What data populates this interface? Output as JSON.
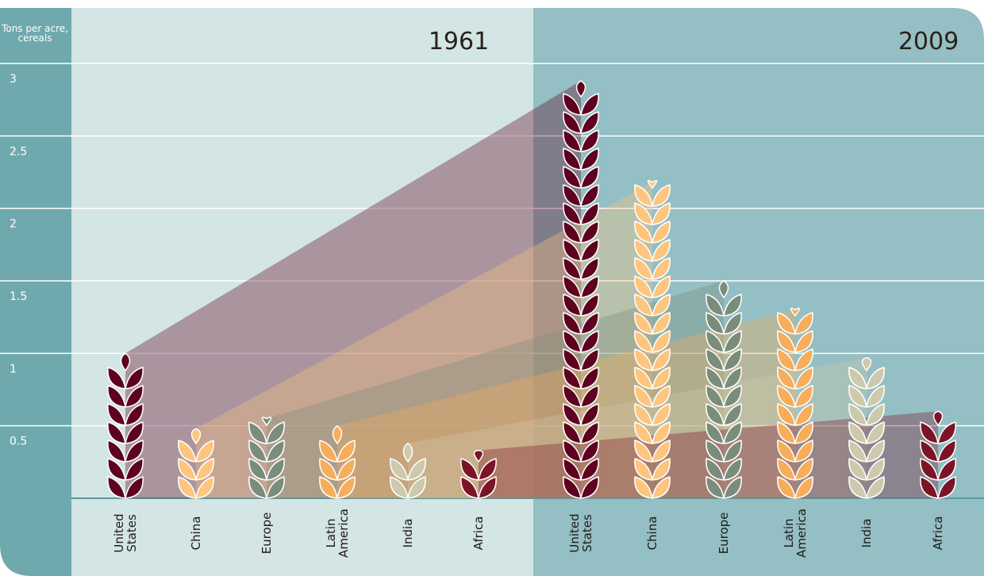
{
  "chart_data": {
    "type": "wheat-bar",
    "y_label": "Tons per acre, cereals",
    "categories": [
      "United States",
      "China",
      "Europe",
      "Latin America",
      "India",
      "Africa"
    ],
    "colors": [
      "#5e0020",
      "#fdc57e",
      "#7a8c7a",
      "#f7ad5a",
      "#cdc9ac",
      "#7c1428"
    ],
    "series": [
      {
        "name": "1961",
        "values": [
          1.0,
          0.48,
          0.55,
          0.5,
          0.38,
          0.33
        ]
      },
      {
        "name": "2009",
        "values": [
          2.88,
          2.18,
          1.5,
          1.3,
          0.97,
          0.6
        ]
      }
    ],
    "ylim": [
      0,
      3
    ],
    "yticks": [
      0.5,
      1,
      1.5,
      2,
      2.5,
      3
    ],
    "grid": true
  }
}
